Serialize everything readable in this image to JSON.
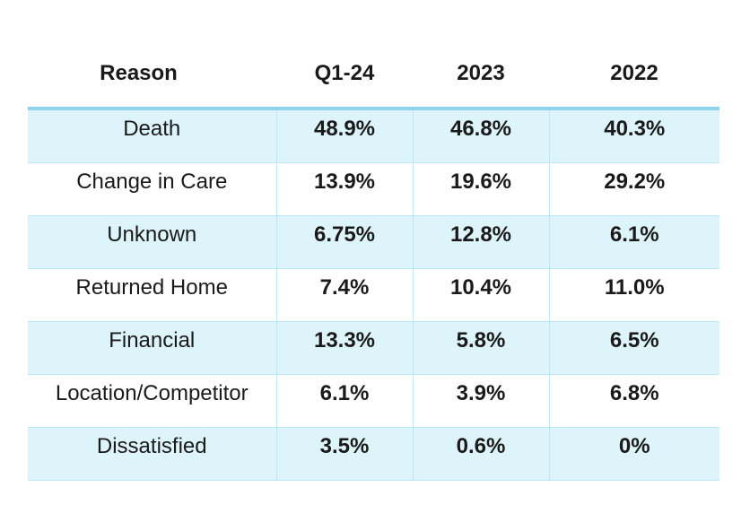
{
  "table": {
    "headers": [
      "Reason",
      "Q1-24",
      "2023",
      "2022"
    ],
    "rows": [
      {
        "reason": "Death",
        "q1_24": "48.9%",
        "y2023": "46.8%",
        "y2022": "40.3%"
      },
      {
        "reason": "Change in Care",
        "q1_24": "13.9%",
        "y2023": "19.6%",
        "y2022": "29.2%"
      },
      {
        "reason": "Unknown",
        "q1_24": "6.75%",
        "y2023": "12.8%",
        "y2022": "6.1%"
      },
      {
        "reason": "Returned Home",
        "q1_24": "7.4%",
        "y2023": "10.4%",
        "y2022": "11.0%"
      },
      {
        "reason": "Financial",
        "q1_24": "13.3%",
        "y2023": "5.8%",
        "y2022": "6.5%"
      },
      {
        "reason": "Location/Competitor",
        "q1_24": "6.1%",
        "y2023": "3.9%",
        "y2022": "6.8%"
      },
      {
        "reason": "Dissatisfied",
        "q1_24": "3.5%",
        "y2023": "0.6%",
        "y2022": "0%"
      }
    ]
  },
  "colors": {
    "shaded_row": "#def4fb",
    "header_rule": "#8fd3ef",
    "grid_line": "#bfe4f3"
  }
}
